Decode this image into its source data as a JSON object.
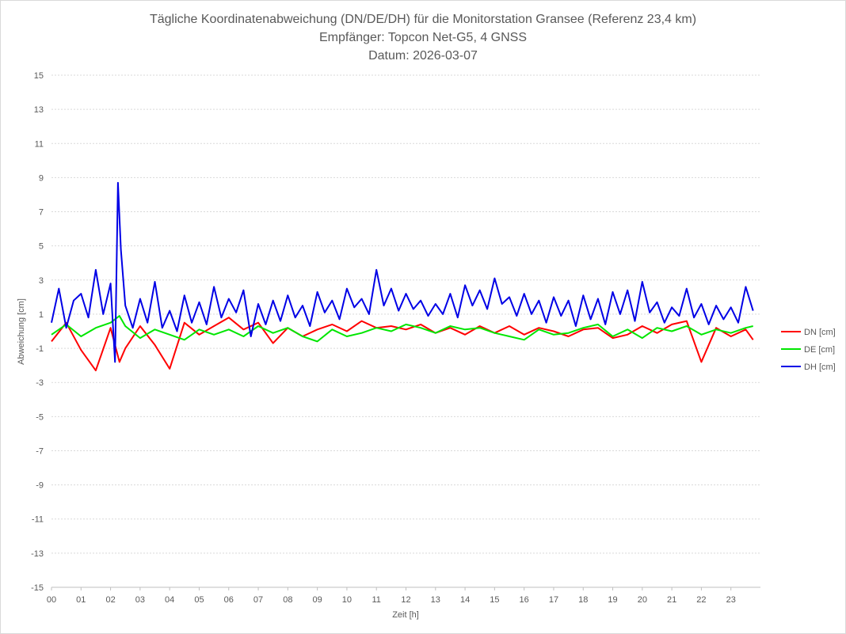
{
  "chart_data": {
    "type": "line",
    "title": "Tägliche Koordinatenabweichung (DN/DE/DH) für die Monitorstation Gransee (Referenz 23,4 km)",
    "subtitle1": "Empfänger: Topcon Net-G5, 4 GNSS",
    "subtitle2": "Datum: 2026-03-07",
    "xlabel": "Zeit [h]",
    "ylabel": "Abweichung [cm]",
    "xlim": [
      0,
      24
    ],
    "ylim": [
      -15,
      15
    ],
    "yticks": [
      -15,
      -13,
      -11,
      -9,
      -7,
      -5,
      -3,
      -1,
      1,
      3,
      5,
      7,
      9,
      11,
      13,
      15
    ],
    "xticks": [
      "00",
      "01",
      "02",
      "03",
      "04",
      "05",
      "06",
      "07",
      "08",
      "09",
      "10",
      "11",
      "12",
      "13",
      "14",
      "15",
      "16",
      "17",
      "18",
      "19",
      "20",
      "21",
      "22",
      "23"
    ],
    "grid": true,
    "legend_position": "right",
    "series": [
      {
        "name": "DN [cm]",
        "color": "#ff0000",
        "x": [
          0,
          0.5,
          1,
          1.5,
          2,
          2.3,
          2.5,
          3,
          3.5,
          4,
          4.5,
          5,
          5.5,
          6,
          6.5,
          7,
          7.5,
          8,
          8.5,
          9,
          9.5,
          10,
          10.5,
          11,
          11.5,
          12,
          12.5,
          13,
          13.5,
          14,
          14.5,
          15,
          15.5,
          16,
          16.5,
          17,
          17.5,
          18,
          18.5,
          19,
          19.5,
          20,
          20.5,
          21,
          21.5,
          22,
          22.5,
          23,
          23.5,
          23.75
        ],
        "values": [
          -0.6,
          0.5,
          -1.1,
          -2.3,
          0.2,
          -1.8,
          -1.0,
          0.3,
          -0.8,
          -2.2,
          0.5,
          -0.2,
          0.3,
          0.8,
          0.1,
          0.5,
          -0.7,
          0.2,
          -0.3,
          0.1,
          0.4,
          0.0,
          0.6,
          0.2,
          0.3,
          0.1,
          0.4,
          -0.1,
          0.2,
          -0.2,
          0.3,
          -0.1,
          0.3,
          -0.2,
          0.2,
          0.0,
          -0.3,
          0.1,
          0.2,
          -0.4,
          -0.2,
          0.3,
          -0.1,
          0.4,
          0.6,
          -1.8,
          0.2,
          -0.3,
          0.1,
          -0.5
        ]
      },
      {
        "name": "DE [cm]",
        "color": "#00e600",
        "x": [
          0,
          0.5,
          1,
          1.5,
          2,
          2.3,
          2.5,
          3,
          3.5,
          4,
          4.5,
          5,
          5.5,
          6,
          6.5,
          7,
          7.5,
          8,
          8.5,
          9,
          9.5,
          10,
          10.5,
          11,
          11.5,
          12,
          12.5,
          13,
          13.5,
          14,
          14.5,
          15,
          15.5,
          16,
          16.5,
          17,
          17.5,
          18,
          18.5,
          19,
          19.5,
          20,
          20.5,
          21,
          21.5,
          22,
          22.5,
          23,
          23.5,
          23.75
        ],
        "values": [
          -0.2,
          0.4,
          -0.3,
          0.2,
          0.5,
          0.9,
          0.3,
          -0.4,
          0.1,
          -0.2,
          -0.5,
          0.1,
          -0.2,
          0.1,
          -0.3,
          0.3,
          -0.1,
          0.2,
          -0.3,
          -0.6,
          0.1,
          -0.3,
          -0.1,
          0.2,
          0.0,
          0.4,
          0.2,
          -0.1,
          0.3,
          0.1,
          0.2,
          -0.1,
          -0.3,
          -0.5,
          0.1,
          -0.2,
          -0.1,
          0.2,
          0.4,
          -0.3,
          0.1,
          -0.4,
          0.2,
          0.0,
          0.3,
          -0.2,
          0.1,
          -0.1,
          0.2,
          0.3
        ]
      },
      {
        "name": "DH [cm]",
        "color": "#0000e6",
        "x": [
          0,
          0.25,
          0.5,
          0.75,
          1,
          1.25,
          1.5,
          1.75,
          2,
          2.15,
          2.25,
          2.35,
          2.5,
          2.75,
          3,
          3.25,
          3.5,
          3.75,
          4,
          4.25,
          4.5,
          4.75,
          5,
          5.25,
          5.5,
          5.75,
          6,
          6.25,
          6.5,
          6.75,
          7,
          7.25,
          7.5,
          7.75,
          8,
          8.25,
          8.5,
          8.75,
          9,
          9.25,
          9.5,
          9.75,
          10,
          10.25,
          10.5,
          10.75,
          11,
          11.25,
          11.5,
          11.75,
          12,
          12.25,
          12.5,
          12.75,
          13,
          13.25,
          13.5,
          13.75,
          14,
          14.25,
          14.5,
          14.75,
          15,
          15.25,
          15.5,
          15.75,
          16,
          16.25,
          16.5,
          16.75,
          17,
          17.25,
          17.5,
          17.75,
          18,
          18.25,
          18.5,
          18.75,
          19,
          19.25,
          19.5,
          19.75,
          20,
          20.25,
          20.5,
          20.75,
          21,
          21.25,
          21.5,
          21.75,
          22,
          22.25,
          22.5,
          22.75,
          23,
          23.25,
          23.5,
          23.75
        ],
        "values": [
          0.5,
          2.5,
          0.2,
          1.8,
          2.2,
          0.8,
          3.6,
          1.0,
          2.8,
          -1.8,
          8.7,
          4.8,
          1.5,
          0.2,
          1.9,
          0.5,
          2.9,
          0.2,
          1.2,
          0.0,
          2.1,
          0.5,
          1.7,
          0.4,
          2.6,
          0.8,
          1.9,
          1.1,
          2.4,
          -0.3,
          1.6,
          0.4,
          1.8,
          0.6,
          2.1,
          0.8,
          1.5,
          0.3,
          2.3,
          1.1,
          1.8,
          0.7,
          2.5,
          1.4,
          1.9,
          1.0,
          3.6,
          1.5,
          2.5,
          1.2,
          2.2,
          1.3,
          1.8,
          0.9,
          1.6,
          1.0,
          2.2,
          0.8,
          2.7,
          1.5,
          2.4,
          1.3,
          3.1,
          1.6,
          2.0,
          0.9,
          2.2,
          1.0,
          1.8,
          0.5,
          2.0,
          0.9,
          1.8,
          0.3,
          2.1,
          0.7,
          1.9,
          0.4,
          2.3,
          1.0,
          2.4,
          0.6,
          2.9,
          1.1,
          1.7,
          0.5,
          1.4,
          0.9,
          2.5,
          0.8,
          1.6,
          0.4,
          1.5,
          0.7,
          1.4,
          0.5,
          2.6,
          1.2
        ]
      }
    ]
  }
}
